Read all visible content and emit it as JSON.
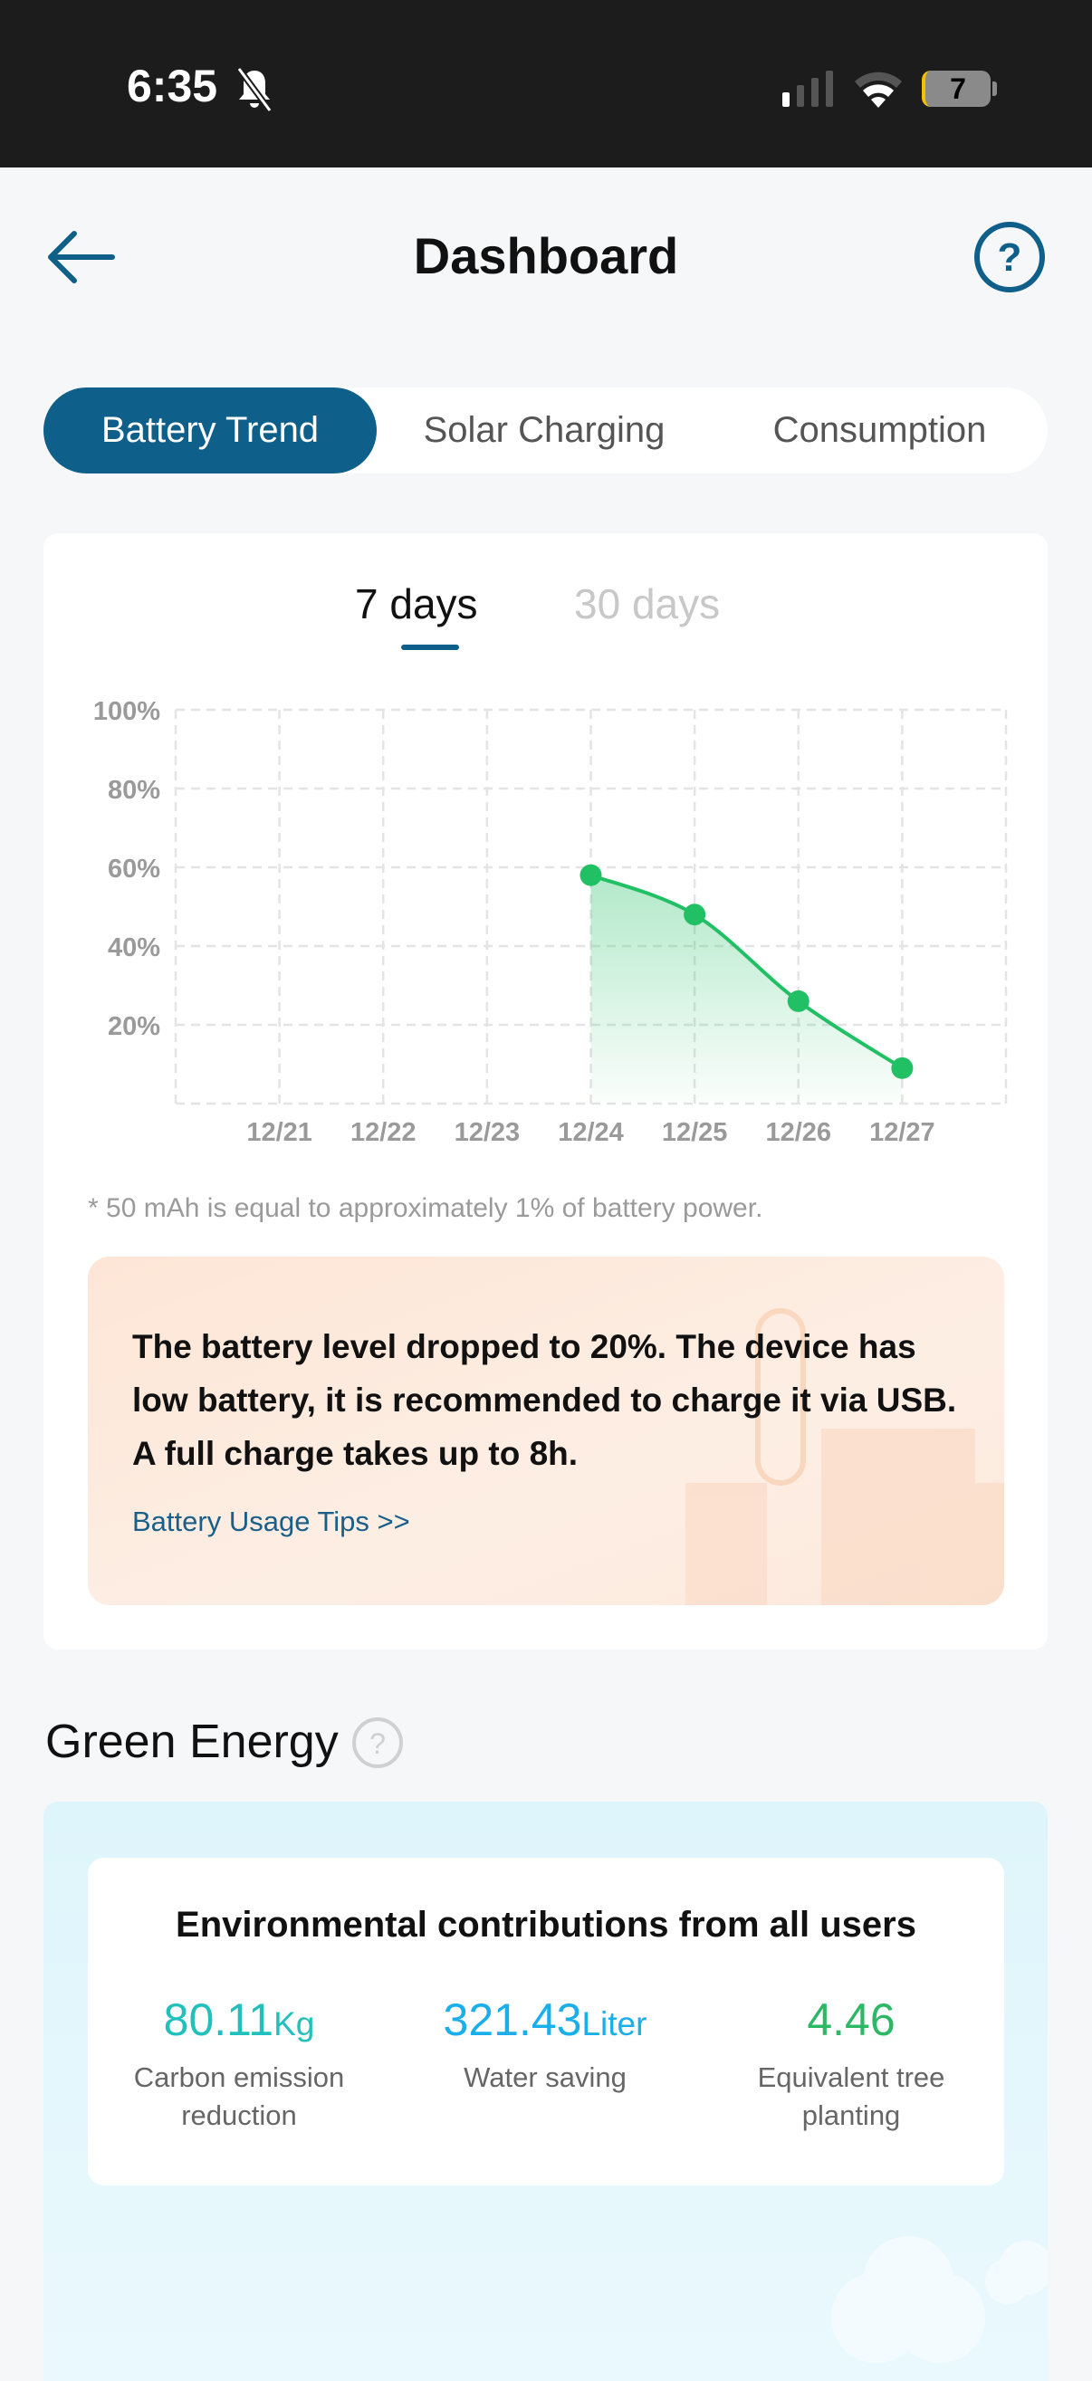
{
  "status_bar": {
    "time": "6:35",
    "battery_level": "7",
    "icons": [
      "bell-slash-icon",
      "cellular-signal-icon",
      "wifi-icon",
      "battery-icon"
    ]
  },
  "header": {
    "title": "Dashboard",
    "back_icon": "arrow-left-icon",
    "help_icon": "question-circle-icon"
  },
  "tabs": [
    {
      "label": "Battery Trend",
      "active": true
    },
    {
      "label": "Solar Charging",
      "active": false
    },
    {
      "label": "Consumption",
      "active": false
    }
  ],
  "period_tabs": [
    {
      "label": "7 days",
      "active": true
    },
    {
      "label": "30 days",
      "active": false
    }
  ],
  "chart_data": {
    "type": "area",
    "categories": [
      "12/21",
      "12/22",
      "12/23",
      "12/24",
      "12/25",
      "12/26",
      "12/27"
    ],
    "values": [
      null,
      null,
      null,
      58,
      48,
      26,
      9
    ],
    "ylim": [
      0,
      100
    ],
    "yticks": [
      "20%",
      "40%",
      "60%",
      "80%",
      "100%"
    ],
    "ytick_values": [
      20,
      40,
      60,
      80,
      100
    ],
    "grid": true,
    "color": "#22c065"
  },
  "footnote": "* 50 mAh is equal to approximately 1% of battery power.",
  "alert": {
    "message": "The battery level dropped to 20%. The device has low battery, it is recommended to charge it via USB. A full charge takes up to 8h.",
    "link": "Battery Usage Tips >>"
  },
  "green_energy": {
    "title": "Green Energy",
    "card_title": "Environmental contributions from all users",
    "stats": [
      {
        "value": "80.11",
        "unit": "Kg",
        "label": "Carbon emission reduction",
        "color": "#22c0bd"
      },
      {
        "value": "321.43",
        "unit": "Liter",
        "label": "Water saving",
        "color": "#1aaeea"
      },
      {
        "value": "4.46",
        "unit": "",
        "label": "Equivalent tree planting",
        "color": "#2db866"
      }
    ]
  },
  "colors": {
    "accent": "#0e5f8a"
  }
}
